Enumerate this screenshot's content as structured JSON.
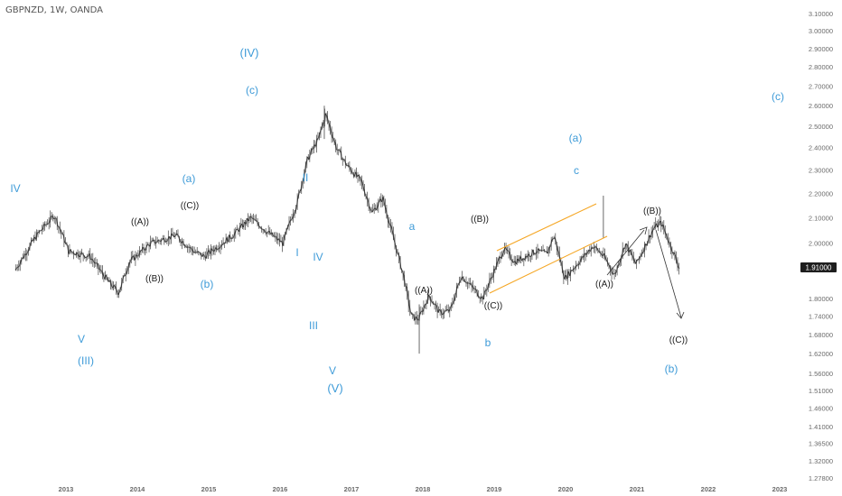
{
  "header": {
    "symbol_title": "GBPNZD, 1W, OANDA"
  },
  "chart_data": {
    "type": "candlestick",
    "symbol": "GBPNZD",
    "timeframe": "1W",
    "source": "OANDA",
    "last_price": "1.91000",
    "x_ticks": [
      "2013",
      "2014",
      "2015",
      "2016",
      "2017",
      "2018",
      "2019",
      "2020",
      "2021",
      "2022",
      "2023"
    ],
    "y_ticks": [
      "3.10000",
      "3.00000",
      "2.90000",
      "2.80000",
      "2.70000",
      "2.60000",
      "2.50000",
      "2.40000",
      "2.30000",
      "2.20000",
      "2.10000",
      "2.00000",
      "1.91000",
      "1.80000",
      "1.74000",
      "1.68000",
      "1.62000",
      "1.56000",
      "1.51000",
      "1.46000",
      "1.41000",
      "1.36500",
      "1.32000",
      "1.27800"
    ],
    "ylim": [
      1.278,
      3.1
    ],
    "scale": "log",
    "price_anchors": [
      {
        "date": "2012.30",
        "price": 1.9
      },
      {
        "date": "2012.60",
        "price": 2.03
      },
      {
        "date": "2012.85",
        "price": 2.11
      },
      {
        "date": "2013.05",
        "price": 1.97
      },
      {
        "date": "2013.35",
        "price": 1.95
      },
      {
        "date": "2013.60",
        "price": 1.86
      },
      {
        "date": "2013.75",
        "price": 1.82
      },
      {
        "date": "2013.90",
        "price": 1.93
      },
      {
        "date": "2014.20",
        "price": 2.0
      },
      {
        "date": "2014.55",
        "price": 2.03
      },
      {
        "date": "2014.80",
        "price": 1.97
      },
      {
        "date": "2014.95",
        "price": 1.95
      },
      {
        "date": "2015.35",
        "price": 2.03
      },
      {
        "date": "2015.60",
        "price": 2.1
      },
      {
        "date": "2015.85",
        "price": 2.04
      },
      {
        "date": "2016.05",
        "price": 2.0
      },
      {
        "date": "2016.25",
        "price": 2.16
      },
      {
        "date": "2016.40",
        "price": 2.35
      },
      {
        "date": "2016.55",
        "price": 2.44
      },
      {
        "date": "2016.65",
        "price": 2.56
      },
      {
        "date": "2016.80",
        "price": 2.4
      },
      {
        "date": "2016.95",
        "price": 2.32
      },
      {
        "date": "2017.15",
        "price": 2.25
      },
      {
        "date": "2017.30",
        "price": 2.12
      },
      {
        "date": "2017.45",
        "price": 2.18
      },
      {
        "date": "2017.60",
        "price": 2.02
      },
      {
        "date": "2017.75",
        "price": 1.87
      },
      {
        "date": "2017.85",
        "price": 1.74
      },
      {
        "date": "2017.95",
        "price": 1.73
      },
      {
        "date": "2018.10",
        "price": 1.81
      },
      {
        "date": "2018.25",
        "price": 1.75
      },
      {
        "date": "2018.40",
        "price": 1.76
      },
      {
        "date": "2018.55",
        "price": 1.88
      },
      {
        "date": "2018.70",
        "price": 1.84
      },
      {
        "date": "2018.85",
        "price": 1.8
      },
      {
        "date": "2019.00",
        "price": 1.89
      },
      {
        "date": "2019.15",
        "price": 1.98
      },
      {
        "date": "2019.30",
        "price": 1.93
      },
      {
        "date": "2019.45",
        "price": 1.95
      },
      {
        "date": "2019.60",
        "price": 1.97
      },
      {
        "date": "2019.75",
        "price": 1.96
      },
      {
        "date": "2019.85",
        "price": 2.03
      },
      {
        "date": "2020.00",
        "price": 1.87
      },
      {
        "date": "2020.20",
        "price": 1.93
      },
      {
        "date": "2020.40",
        "price": 1.99
      },
      {
        "date": "2020.55",
        "price": 1.95
      },
      {
        "date": "2020.70",
        "price": 1.88
      },
      {
        "date": "2020.85",
        "price": 2.0
      },
      {
        "date": "2021.00",
        "price": 1.92
      },
      {
        "date": "2021.25",
        "price": 2.06
      },
      {
        "date": "2021.35",
        "price": 2.08
      },
      {
        "date": "2021.50",
        "price": 1.98
      },
      {
        "date": "2021.60",
        "price": 1.91
      }
    ],
    "channel_color": "#f5a623",
    "wave_label_colors": {
      "primary": "#3e9bd8",
      "intermediate": "#1a1a1a"
    },
    "wave_labels": {
      "iv_primary": "(IV)",
      "c_top": "(c)",
      "a_right": "(a)",
      "c_far_right": "(c)",
      "c_small": "c",
      "iv_left": "IV",
      "v_left": "V",
      "iii_left": "(III)",
      "a_2014": "(a)",
      "b_2015": "(b)",
      "A_2014": "((A))",
      "B_2014": "((B))",
      "C_2014": "((C))",
      "ii_2016": "II",
      "i_2016": "I",
      "iv_2016": "IV",
      "iii_2016": "III",
      "v_2017": "V",
      "v_primary": "(V)",
      "a_2018": "a",
      "A_2018": "((A))",
      "B_2019": "((B))",
      "C_2019": "((C))",
      "b_2019": "b",
      "A_2020": "((A))",
      "B_2021": "((B))",
      "C_2021": "((C))",
      "b_2021": "(b)"
    }
  }
}
